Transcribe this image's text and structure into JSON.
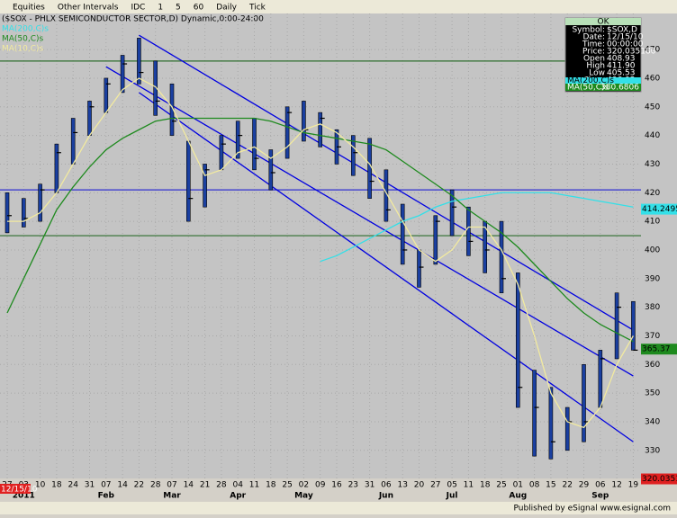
{
  "toolbar": {
    "items": [
      "Equities",
      "Other Intervals",
      "IDC",
      "1",
      "5",
      "60",
      "Daily",
      "Tick"
    ]
  },
  "footer": "Published by eSignal www.esignal.com",
  "info": {
    "header": "OK",
    "rows": [
      [
        "Symbol:",
        "$SOX,D"
      ],
      [
        "Date:",
        "12/15/10"
      ],
      [
        "Time:",
        "00:00:00"
      ],
      [
        "Price:",
        "320.035186"
      ],
      [
        "Open",
        "408.93"
      ],
      [
        "High",
        "411.90"
      ],
      [
        "Low",
        "405.53"
      ],
      [
        "Close",
        "406.03"
      ]
    ],
    "ma200": "MA(200,C)s",
    "ma50": [
      "MA(50,C)s",
      "380.6806"
    ]
  },
  "chart_data": {
    "type": "ohlc",
    "title": "($SOX - PHLX SEMICONDUCTOR SECTOR,D) Dynamic,0:00-24:00",
    "categories": [
      "27",
      "03",
      "10",
      "18",
      "24",
      "31",
      "07",
      "14",
      "22",
      "28",
      "07",
      "14",
      "21",
      "28",
      "04",
      "11",
      "18",
      "25",
      "02",
      "09",
      "16",
      "23",
      "31",
      "06",
      "13",
      "20",
      "27",
      "05",
      "11",
      "18",
      "25",
      "01",
      "08",
      "15",
      "22",
      "29",
      "06",
      "12",
      "19"
    ],
    "month_labels": [
      null,
      "2011",
      null,
      null,
      null,
      null,
      "Feb",
      null,
      null,
      null,
      "Mar",
      null,
      null,
      null,
      "Apr",
      null,
      null,
      null,
      "May",
      null,
      null,
      null,
      null,
      "Jun",
      null,
      null,
      null,
      "Jul",
      null,
      null,
      null,
      "Aug",
      null,
      null,
      null,
      null,
      "Sep",
      null,
      null
    ],
    "high": [
      420,
      418,
      423,
      437,
      446,
      452,
      460,
      468,
      474,
      466,
      458,
      438,
      430,
      440,
      445,
      446,
      435,
      450,
      452,
      448,
      442,
      440,
      439,
      428,
      416,
      400,
      412,
      421,
      415,
      410,
      410,
      392,
      358,
      352,
      345,
      360,
      365,
      385,
      382
    ],
    "low": [
      406,
      408,
      410,
      420,
      430,
      440,
      448,
      455,
      458,
      447,
      440,
      410,
      415,
      428,
      432,
      428,
      421,
      432,
      438,
      436,
      430,
      426,
      418,
      410,
      395,
      387,
      395,
      405,
      398,
      392,
      385,
      345,
      328,
      327,
      330,
      333,
      345,
      362,
      365
    ],
    "close": [
      412,
      411,
      421,
      434,
      441,
      450,
      458,
      465,
      462,
      452,
      445,
      418,
      428,
      437,
      440,
      432,
      427,
      448,
      442,
      446,
      436,
      434,
      424,
      414,
      400,
      394,
      410,
      415,
      403,
      400,
      390,
      352,
      345,
      333,
      340,
      340,
      362,
      380,
      365
    ],
    "bar_color": "#1a3fa0",
    "series": [
      {
        "name": "MA(200,C)s",
        "color": "#33e0e8",
        "values": [
          null,
          null,
          null,
          null,
          null,
          null,
          null,
          null,
          null,
          null,
          null,
          null,
          null,
          null,
          null,
          null,
          null,
          null,
          null,
          396,
          398,
          401,
          404,
          407,
          410,
          412,
          415,
          417,
          418,
          419,
          420,
          420,
          420,
          420,
          419,
          418,
          417,
          416,
          415
        ]
      },
      {
        "name": "MA(50,C)s",
        "color": "#1e8a1e",
        "values": [
          378,
          390,
          402,
          414,
          422,
          429,
          435,
          439,
          442,
          445,
          446,
          446,
          446,
          446,
          446,
          446,
          445,
          443,
          441,
          440,
          439,
          438,
          437,
          435,
          431,
          427,
          423,
          419,
          414,
          410,
          406,
          401,
          395,
          389,
          383,
          378,
          374,
          371,
          368
        ]
      },
      {
        "name": "MA(10,C)s",
        "color": "#f2eaa0",
        "values": [
          410,
          410,
          413,
          420,
          430,
          440,
          448,
          456,
          460,
          457,
          450,
          438,
          426,
          428,
          434,
          436,
          432,
          436,
          442,
          444,
          441,
          436,
          430,
          420,
          410,
          400,
          396,
          400,
          408,
          408,
          400,
          388,
          370,
          350,
          340,
          338,
          345,
          360,
          370
        ]
      }
    ],
    "channels": [
      {
        "x": [
          8,
          38
        ],
        "y": [
          475,
          372
        ]
      },
      {
        "x": [
          6,
          38
        ],
        "y": [
          464,
          356
        ]
      },
      {
        "x": [
          8,
          38
        ],
        "y": [
          455,
          333
        ]
      }
    ],
    "channel_color": "#0000e0",
    "hlines": [
      {
        "value": 466,
        "color": "#2e6e2e"
      },
      {
        "value": 421,
        "color": "#3030d0"
      },
      {
        "value": 405,
        "color": "#2e6e2e"
      }
    ],
    "ylim": [
      320.2,
      482.6
    ],
    "yticks": [
      330,
      340,
      350,
      360,
      370,
      380,
      390,
      400,
      410,
      420,
      430,
      440,
      450,
      460,
      470
    ],
    "last_labels": [
      {
        "value": 414.2495,
        "label": "414.2495",
        "color": "#33e0e8"
      },
      {
        "value": 365.37,
        "label": "365.37",
        "color": "#1e8a1e"
      },
      {
        "value": 320.035186,
        "label": "320.035186",
        "color": "#e02020"
      }
    ],
    "cursor_date": "12/15/10"
  }
}
